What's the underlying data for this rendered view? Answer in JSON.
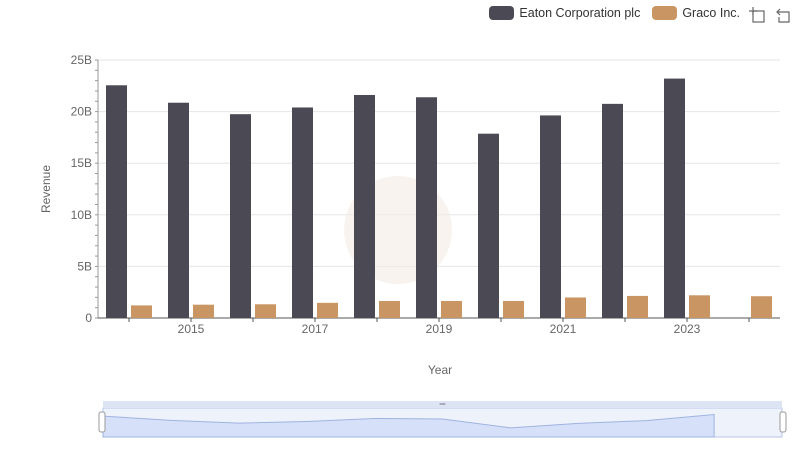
{
  "legend": {
    "series_a": "Eaton Corporation plc",
    "series_b": "Graco Inc."
  },
  "toolbox": {
    "zoom_icon": "zoom-select-icon",
    "restore_icon": "restore-icon"
  },
  "colors": {
    "series_a": "#4a4954",
    "series_b": "#c99562",
    "grid": "#e6e6e6",
    "axis_text": "#666666",
    "slider_fill": "#d6e1f9",
    "slider_border": "#b8c7ea"
  },
  "chart_data": {
    "type": "bar",
    "xlabel": "Year",
    "ylabel": "Revenue",
    "ylim": [
      0,
      25000000000
    ],
    "y_ticks": [
      "0",
      "5B",
      "10B",
      "15B",
      "20B",
      "25B"
    ],
    "x_tick_labels": [
      "2015",
      "2017",
      "2019",
      "2021",
      "2023"
    ],
    "categories": [
      "2014",
      "2015",
      "2016",
      "2017",
      "2018",
      "2019",
      "2020",
      "2021",
      "2022",
      "2023",
      "2024"
    ],
    "series": [
      {
        "name": "Eaton Corporation plc",
        "values": [
          22550000000,
          20860000000,
          19750000000,
          20400000000,
          21610000000,
          21390000000,
          17860000000,
          19630000000,
          20750000000,
          23200000000,
          null
        ]
      },
      {
        "name": "Graco Inc.",
        "values": [
          1220000000,
          1290000000,
          1330000000,
          1470000000,
          1650000000,
          1650000000,
          1650000000,
          1990000000,
          2140000000,
          2200000000,
          2110000000
        ]
      }
    ]
  }
}
